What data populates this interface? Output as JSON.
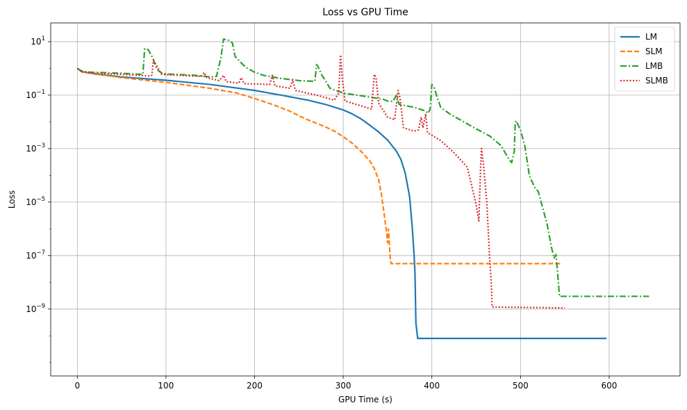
{
  "chart_data": {
    "type": "line",
    "title": "Loss vs GPU Time",
    "xlabel": "GPU Time (s)",
    "ylabel": "Loss",
    "xscale": "linear",
    "yscale": "log",
    "xlim": [
      -30,
      680
    ],
    "ylim_exponent": [
      -11.5,
      1.7
    ],
    "x_ticks": [
      0,
      100,
      200,
      300,
      400,
      500,
      600
    ],
    "x_tick_labels": [
      "0",
      "100",
      "200",
      "300",
      "400",
      "500",
      "600"
    ],
    "y_tick_exponents": [
      1,
      -1,
      -3,
      -5,
      -7,
      -9
    ],
    "y_tick_base": "10",
    "grid": true,
    "legend_position": "upper right",
    "series": [
      {
        "name": "LM",
        "color": "#1f77b4",
        "style": "solid",
        "points": [
          [
            0,
            1.0
          ],
          [
            5,
            0.75
          ],
          [
            20,
            0.62
          ],
          [
            50,
            0.48
          ],
          [
            100,
            0.36
          ],
          [
            150,
            0.25
          ],
          [
            200,
            0.15
          ],
          [
            230,
            0.1
          ],
          [
            260,
            0.065
          ],
          [
            280,
            0.045
          ],
          [
            300,
            0.028
          ],
          [
            310,
            0.02
          ],
          [
            320,
            0.013
          ],
          [
            330,
            0.0075
          ],
          [
            340,
            0.0042
          ],
          [
            350,
            0.0021
          ],
          [
            360,
            0.0008
          ],
          [
            365,
            0.0004
          ],
          [
            370,
            0.00012
          ],
          [
            375,
            1.5e-05
          ],
          [
            378,
            1e-06
          ],
          [
            380,
            1e-07
          ],
          [
            381,
            2e-08
          ],
          [
            382,
            3e-10
          ],
          [
            384,
            8e-11
          ],
          [
            597,
            8e-11
          ]
        ]
      },
      {
        "name": "SLM",
        "color": "#ff7f0e",
        "style": "dashed",
        "points": [
          [
            0,
            1.0
          ],
          [
            5,
            0.75
          ],
          [
            20,
            0.62
          ],
          [
            50,
            0.45
          ],
          [
            100,
            0.3
          ],
          [
            150,
            0.18
          ],
          [
            180,
            0.12
          ],
          [
            200,
            0.075
          ],
          [
            220,
            0.045
          ],
          [
            240,
            0.025
          ],
          [
            250,
            0.017
          ],
          [
            260,
            0.012
          ],
          [
            280,
            0.0065
          ],
          [
            290,
            0.0045
          ],
          [
            300,
            0.0028
          ],
          [
            310,
            0.0016
          ],
          [
            320,
            0.0008
          ],
          [
            330,
            0.00035
          ],
          [
            335,
            0.00018
          ],
          [
            340,
            7e-05
          ],
          [
            343,
            2e-05
          ],
          [
            346,
            4e-06
          ],
          [
            348,
            1.2e-06
          ],
          [
            349,
            7e-07
          ],
          [
            350,
            3e-07
          ],
          [
            351,
            1e-06
          ],
          [
            352,
            3e-07
          ],
          [
            353,
            8e-08
          ],
          [
            354,
            5e-08
          ],
          [
            545,
            5e-08
          ]
        ]
      },
      {
        "name": "LMB",
        "color": "#2ca02c",
        "style": "dashdot",
        "points": [
          [
            0,
            1.0
          ],
          [
            5,
            0.8
          ],
          [
            15,
            0.72
          ],
          [
            50,
            0.66
          ],
          [
            70,
            0.6
          ],
          [
            74,
            0.6
          ],
          [
            76,
            5.5
          ],
          [
            80,
            5.0
          ],
          [
            85,
            2.5
          ],
          [
            90,
            0.9
          ],
          [
            95,
            0.68
          ],
          [
            100,
            0.62
          ],
          [
            130,
            0.56
          ],
          [
            150,
            0.48
          ],
          [
            157,
            0.5
          ],
          [
            162,
            2.5
          ],
          [
            165,
            12.5
          ],
          [
            170,
            11.5
          ],
          [
            175,
            9.0
          ],
          [
            178,
            2.8
          ],
          [
            185,
            1.6
          ],
          [
            190,
            1.1
          ],
          [
            200,
            0.72
          ],
          [
            210,
            0.55
          ],
          [
            230,
            0.42
          ],
          [
            250,
            0.35
          ],
          [
            268,
            0.33
          ],
          [
            270,
            1.4
          ],
          [
            272,
            1.1
          ],
          [
            276,
            0.55
          ],
          [
            280,
            0.35
          ],
          [
            285,
            0.18
          ],
          [
            300,
            0.12
          ],
          [
            320,
            0.095
          ],
          [
            345,
            0.07
          ],
          [
            350,
            0.06
          ],
          [
            356,
            0.058
          ],
          [
            360,
            0.1
          ],
          [
            363,
            0.045
          ],
          [
            380,
            0.035
          ],
          [
            392,
            0.026
          ],
          [
            396,
            0.021
          ],
          [
            398,
            0.03
          ],
          [
            400,
            0.25
          ],
          [
            403,
            0.18
          ],
          [
            406,
            0.08
          ],
          [
            410,
            0.035
          ],
          [
            420,
            0.02
          ],
          [
            430,
            0.013
          ],
          [
            450,
            0.0055
          ],
          [
            465,
            0.003
          ],
          [
            478,
            0.0013
          ],
          [
            487,
            0.0004
          ],
          [
            490,
            0.0003
          ],
          [
            493,
            0.0008
          ],
          [
            494,
            0.009
          ],
          [
            495,
            0.011
          ],
          [
            500,
            0.005
          ],
          [
            505,
            0.0012
          ],
          [
            510,
            0.0001
          ],
          [
            516,
            3.5e-05
          ],
          [
            520,
            2.5e-05
          ],
          [
            530,
            1.5e-06
          ],
          [
            535,
            2e-07
          ],
          [
            538,
            8e-08
          ],
          [
            540,
            1.1e-07
          ],
          [
            542,
            2e-08
          ],
          [
            544,
            3e-09
          ],
          [
            645,
            3e-09
          ]
        ]
      },
      {
        "name": "SLMB",
        "color": "#d62728",
        "style": "dotted",
        "points": [
          [
            0,
            1.0
          ],
          [
            5,
            0.75
          ],
          [
            20,
            0.65
          ],
          [
            50,
            0.6
          ],
          [
            80,
            0.52
          ],
          [
            84,
            0.55
          ],
          [
            86,
            2.0
          ],
          [
            90,
            1.2
          ],
          [
            95,
            0.6
          ],
          [
            140,
            0.5
          ],
          [
            143,
            0.7
          ],
          [
            146,
            0.45
          ],
          [
            160,
            0.35
          ],
          [
            165,
            0.55
          ],
          [
            168,
            0.32
          ],
          [
            182,
            0.28
          ],
          [
            185,
            0.45
          ],
          [
            188,
            0.27
          ],
          [
            217,
            0.25
          ],
          [
            220,
            0.55
          ],
          [
            223,
            0.22
          ],
          [
            240,
            0.18
          ],
          [
            243,
            0.38
          ],
          [
            246,
            0.15
          ],
          [
            270,
            0.1
          ],
          [
            280,
            0.08
          ],
          [
            290,
            0.065
          ],
          [
            295,
            0.12
          ],
          [
            297,
            3.2
          ],
          [
            299,
            0.4
          ],
          [
            302,
            0.06
          ],
          [
            320,
            0.04
          ],
          [
            332,
            0.03
          ],
          [
            335,
            0.6
          ],
          [
            337,
            0.45
          ],
          [
            340,
            0.05
          ],
          [
            350,
            0.015
          ],
          [
            358,
            0.012
          ],
          [
            362,
            0.15
          ],
          [
            364,
            0.08
          ],
          [
            368,
            0.006
          ],
          [
            380,
            0.0045
          ],
          [
            385,
            0.005
          ],
          [
            388,
            0.015
          ],
          [
            390,
            0.006
          ],
          [
            393,
            0.02
          ],
          [
            395,
            0.004
          ],
          [
            410,
            0.002
          ],
          [
            425,
            0.0007
          ],
          [
            440,
            0.0002
          ],
          [
            450,
            8e-06
          ],
          [
            453,
            2e-06
          ],
          [
            455,
            0.0002
          ],
          [
            456,
            0.001
          ],
          [
            458,
            0.0003
          ],
          [
            462,
            1e-05
          ],
          [
            465,
            1e-07
          ],
          [
            467,
            1e-08
          ],
          [
            468,
            1.2e-09
          ],
          [
            550,
            1.1e-09
          ]
        ]
      }
    ]
  }
}
